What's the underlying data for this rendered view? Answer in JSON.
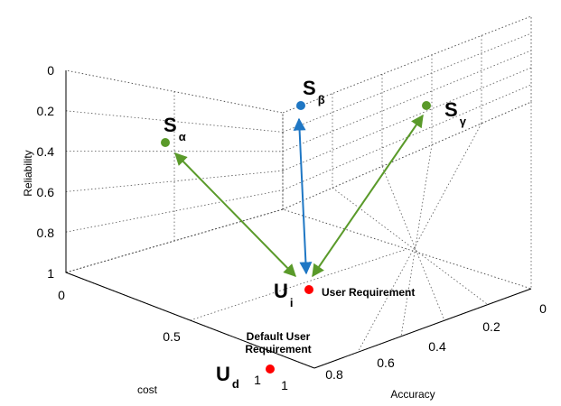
{
  "chart_data": {
    "type": "scatter",
    "title": "",
    "axes": {
      "reliability": {
        "label": "Reliability",
        "ticks": [
          "0",
          "0.2",
          "0.4",
          "0.6",
          "0.8",
          "1"
        ],
        "range": [
          0,
          1
        ]
      },
      "cost": {
        "label": "cost",
        "ticks": [
          "0",
          "0.5",
          "1"
        ],
        "range": [
          0,
          1
        ]
      },
      "accuracy": {
        "label": "Accuracy",
        "ticks": [
          "0",
          "0.2",
          "0.4",
          "0.6",
          "0.8",
          "1"
        ],
        "range": [
          0,
          1
        ]
      }
    },
    "grid": true,
    "points": [
      {
        "id": "s_alpha",
        "main": "S",
        "sub": "α",
        "color": "#5a9a2a"
      },
      {
        "id": "s_beta",
        "main": "S",
        "sub": "β",
        "color": "#1f77c4"
      },
      {
        "id": "s_gamma",
        "main": "S",
        "sub": "γ",
        "color": "#5a9a2a"
      },
      {
        "id": "u_i",
        "main": "U",
        "sub": "i",
        "color": "#ff0000",
        "annotation": "User Requirement"
      },
      {
        "id": "u_d",
        "main": "U",
        "sub": "d",
        "color": "#ff0000",
        "annotation": [
          "Default User",
          "Requirement"
        ]
      }
    ],
    "arrows": [
      {
        "from": "u_i",
        "to": "s_alpha",
        "color": "#5a9a2a",
        "bidirectional": true
      },
      {
        "from": "u_i",
        "to": "s_beta",
        "color": "#1f77c4",
        "bidirectional": true
      },
      {
        "from": "u_i",
        "to": "s_gamma",
        "color": "#5a9a2a",
        "bidirectional": true
      }
    ]
  }
}
